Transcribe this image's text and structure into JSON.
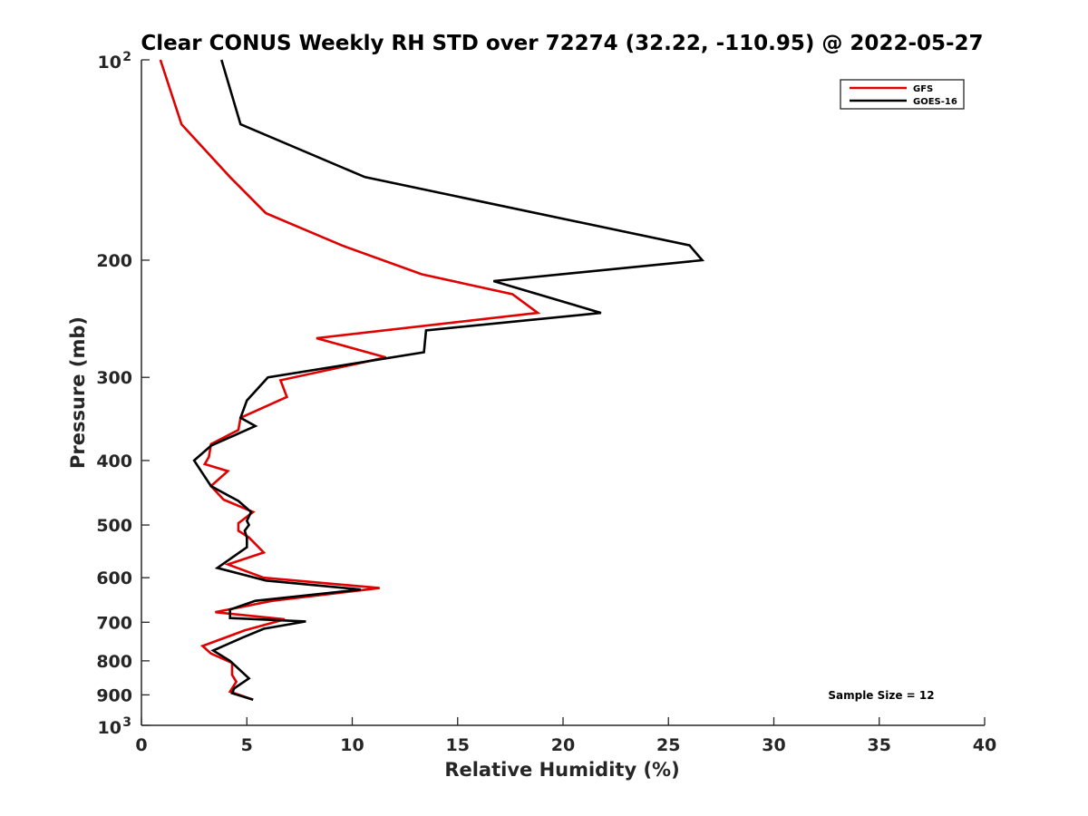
{
  "chart_data": {
    "type": "line",
    "title": "Clear CONUS Weekly RH STD over 72274 (32.22, -110.95) @ 2022-05-27",
    "xlabel": "Relative Humidity (%)",
    "ylabel": "Pressure (mb)",
    "xlim": [
      0,
      40
    ],
    "ylim": [
      100,
      1000
    ],
    "y_scale": "log",
    "y_reversed": true,
    "x_ticks": [
      0,
      5,
      10,
      15,
      20,
      25,
      30,
      35,
      40
    ],
    "x_tick_labels": [
      "0",
      "5",
      "10",
      "15",
      "20",
      "25",
      "30",
      "35",
      "40"
    ],
    "y_ticks": [
      200,
      300,
      400,
      500,
      600,
      700,
      800,
      900
    ],
    "y_tick_labels": [
      "200",
      "300",
      "400",
      "500",
      "600",
      "700",
      "800",
      "900"
    ],
    "y_decade_labels": [
      {
        "value": 100,
        "base": "10",
        "exp": "2"
      },
      {
        "value": 1000,
        "base": "10",
        "exp": "3"
      }
    ],
    "grid": false,
    "legend_position": "top-right",
    "annotation": "Sample Size = 12",
    "series": [
      {
        "name": "GFS",
        "color": "#e00000",
        "points": [
          [
            0.9,
            100
          ],
          [
            1.9,
            125
          ],
          [
            4.2,
            150
          ],
          [
            5.9,
            170
          ],
          [
            9.5,
            190
          ],
          [
            13.3,
            210
          ],
          [
            17.6,
            225
          ],
          [
            18.8,
            240
          ],
          [
            8.3,
            262
          ],
          [
            11.6,
            280
          ],
          [
            6.6,
            303
          ],
          [
            6.9,
            321
          ],
          [
            4.7,
            345
          ],
          [
            4.6,
            360
          ],
          [
            3.3,
            378
          ],
          [
            3.2,
            395
          ],
          [
            3.0,
            405
          ],
          [
            4.1,
            415
          ],
          [
            3.3,
            437
          ],
          [
            3.9,
            458
          ],
          [
            5.3,
            478
          ],
          [
            4.6,
            497
          ],
          [
            4.6,
            510
          ],
          [
            5.1,
            522
          ],
          [
            5.8,
            550
          ],
          [
            4.1,
            573
          ],
          [
            5.8,
            600
          ],
          [
            11.3,
            622
          ],
          [
            6.2,
            650
          ],
          [
            3.5,
            676
          ],
          [
            6.8,
            693
          ],
          [
            4.9,
            720
          ],
          [
            2.9,
            760
          ],
          [
            3.3,
            780
          ],
          [
            4.3,
            806
          ],
          [
            4.3,
            840
          ],
          [
            4.5,
            860
          ],
          [
            4.2,
            890
          ],
          [
            5.3,
            915
          ]
        ]
      },
      {
        "name": "GOES-16",
        "color": "#000000",
        "points": [
          [
            3.8,
            100
          ],
          [
            4.7,
            125
          ],
          [
            10.6,
            150
          ],
          [
            26.0,
            190
          ],
          [
            26.6,
            200
          ],
          [
            16.7,
            215
          ],
          [
            21.8,
            240
          ],
          [
            13.5,
            255
          ],
          [
            13.4,
            275
          ],
          [
            6.0,
            300
          ],
          [
            5.0,
            325
          ],
          [
            4.7,
            345
          ],
          [
            5.4,
            355
          ],
          [
            3.3,
            380
          ],
          [
            2.5,
            400
          ],
          [
            3.3,
            437
          ],
          [
            4.6,
            460
          ],
          [
            5.2,
            478
          ],
          [
            5.0,
            493
          ],
          [
            5.1,
            500
          ],
          [
            4.9,
            510
          ],
          [
            5.0,
            522
          ],
          [
            5.0,
            540
          ],
          [
            3.6,
            580
          ],
          [
            5.9,
            606
          ],
          [
            10.4,
            625
          ],
          [
            5.4,
            650
          ],
          [
            4.2,
            670
          ],
          [
            4.2,
            690
          ],
          [
            7.8,
            698
          ],
          [
            5.8,
            716
          ],
          [
            4.8,
            738
          ],
          [
            3.4,
            772
          ],
          [
            4.2,
            800
          ],
          [
            5.1,
            850
          ],
          [
            4.4,
            880
          ],
          [
            4.3,
            895
          ],
          [
            5.3,
            915
          ]
        ]
      }
    ]
  }
}
